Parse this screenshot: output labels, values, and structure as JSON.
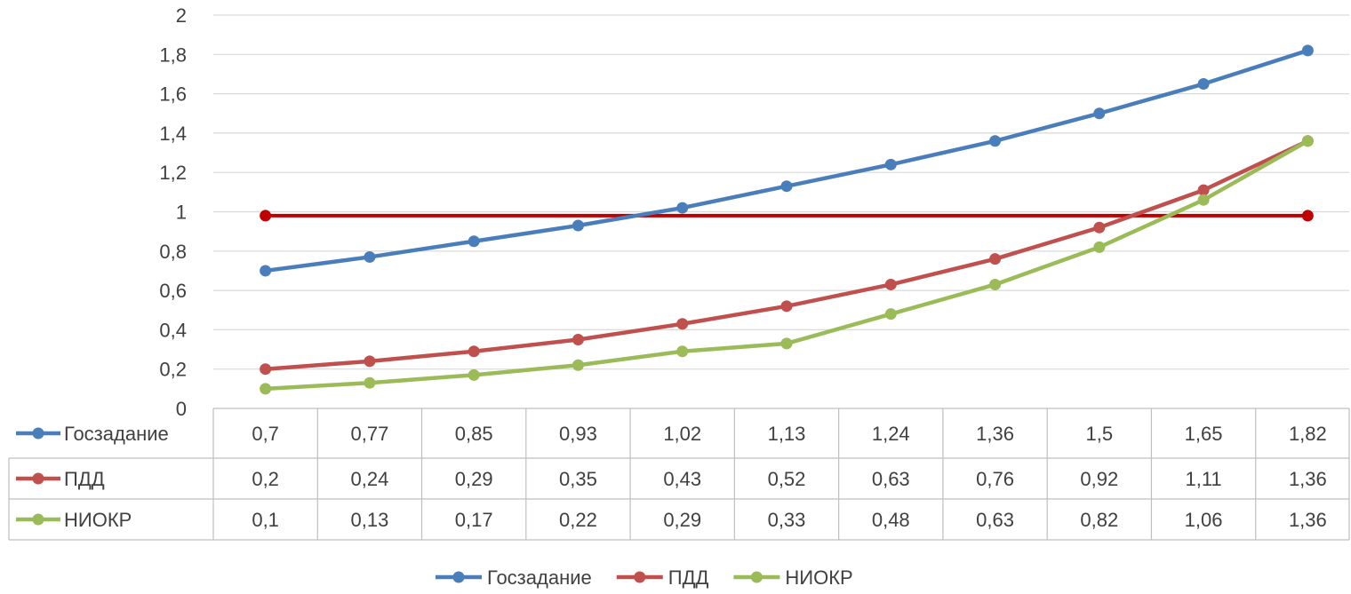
{
  "chart_data": {
    "type": "line",
    "title": "",
    "xlabel": "",
    "ylabel": "",
    "ylim": [
      0,
      2
    ],
    "y_ticks": [
      "0",
      "0,2",
      "0,4",
      "0,6",
      "0,8",
      "1",
      "1,2",
      "1,4",
      "1,6",
      "1,8",
      "2"
    ],
    "grid": true,
    "data_table": true,
    "legend_position": "bottom",
    "point_count": 11,
    "series": [
      {
        "name": "Госзадание",
        "color": "#4A7EBB",
        "values": [
          0.7,
          0.77,
          0.85,
          0.93,
          1.02,
          1.13,
          1.24,
          1.36,
          1.5,
          1.65,
          1.82
        ],
        "labels": [
          "0,7",
          "0,77",
          "0,85",
          "0,93",
          "1,02",
          "1,13",
          "1,24",
          "1,36",
          "1,5",
          "1,65",
          "1,82"
        ]
      },
      {
        "name": "ПДД",
        "color": "#C0504D",
        "values": [
          0.2,
          0.24,
          0.29,
          0.35,
          0.43,
          0.52,
          0.63,
          0.76,
          0.92,
          1.11,
          1.36
        ],
        "labels": [
          "0,2",
          "0,24",
          "0,29",
          "0,35",
          "0,43",
          "0,52",
          "0,63",
          "0,76",
          "0,92",
          "1,11",
          "1,36"
        ]
      },
      {
        "name": "НИОКР",
        "color": "#9BBB59",
        "values": [
          0.1,
          0.13,
          0.17,
          0.22,
          0.29,
          0.33,
          0.48,
          0.63,
          0.82,
          1.06,
          1.36
        ],
        "labels": [
          "0,1",
          "0,13",
          "0,17",
          "0,22",
          "0,29",
          "0,33",
          "0,48",
          "0,63",
          "0,82",
          "1,06",
          "1,36"
        ]
      }
    ],
    "reference_line": {
      "value": 0.98,
      "color": "#C00000",
      "markers": "endpoints"
    }
  }
}
